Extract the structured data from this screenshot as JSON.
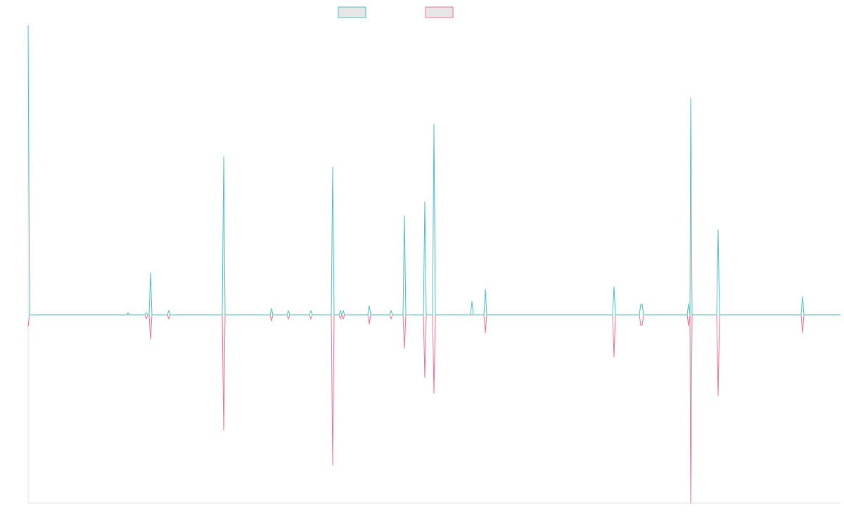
{
  "chart_data": {
    "type": "line",
    "title": "",
    "xlabel": "",
    "ylabel": "",
    "grid": false,
    "legend_position": "top-center",
    "ylim": [
      -268,
      412
    ],
    "xlim": [
      0,
      1155
    ],
    "series": [
      {
        "color": "#4bbfbf",
        "fill": "#e6e6e6",
        "points": [
          [
            0,
            412
          ],
          [
            2,
            0
          ],
          [
            141,
            0
          ],
          [
            142,
            3
          ],
          [
            144,
            0
          ],
          [
            166,
            0
          ],
          [
            168,
            3
          ],
          [
            170,
            0
          ],
          [
            172,
            0
          ],
          [
            174,
            60
          ],
          [
            176,
            0
          ],
          [
            198,
            0
          ],
          [
            200,
            6
          ],
          [
            202,
            0
          ],
          [
            276,
            0
          ],
          [
            278,
            225
          ],
          [
            280,
            0
          ],
          [
            344,
            0
          ],
          [
            346,
            9
          ],
          [
            348,
            0
          ],
          [
            350,
            0
          ],
          [
            368,
            0
          ],
          [
            370,
            6
          ],
          [
            372,
            0
          ],
          [
            400,
            0
          ],
          [
            402,
            6
          ],
          [
            404,
            0
          ],
          [
            431,
            0
          ],
          [
            433,
            210
          ],
          [
            435,
            0
          ],
          [
            442,
            0
          ],
          [
            444,
            6
          ],
          [
            446,
            0
          ],
          [
            448,
            6
          ],
          [
            450,
            0
          ],
          [
            483,
            0
          ],
          [
            485,
            13
          ],
          [
            487,
            0
          ],
          [
            514,
            0
          ],
          [
            516,
            6
          ],
          [
            518,
            0
          ],
          [
            533,
            0
          ],
          [
            535,
            141
          ],
          [
            537,
            0
          ],
          [
            562,
            0
          ],
          [
            564,
            161
          ],
          [
            566,
            0
          ],
          [
            575,
            0
          ],
          [
            577,
            271
          ],
          [
            579,
            0
          ],
          [
            629,
            0
          ],
          [
            631,
            19
          ],
          [
            633,
            0
          ],
          [
            648,
            0
          ],
          [
            650,
            37
          ],
          [
            652,
            0
          ],
          [
            831,
            0
          ],
          [
            833,
            40
          ],
          [
            835,
            0
          ],
          [
            869,
            0
          ],
          [
            871,
            15
          ],
          [
            873,
            15
          ],
          [
            875,
            0
          ],
          [
            937,
            0
          ],
          [
            939,
            16
          ],
          [
            941,
            0
          ],
          [
            942,
            308
          ],
          [
            944,
            0
          ],
          [
            979,
            0
          ],
          [
            981,
            121
          ],
          [
            983,
            0
          ],
          [
            1099,
            0
          ],
          [
            1101,
            26
          ],
          [
            1103,
            0
          ],
          [
            1155,
            0
          ]
        ]
      },
      {
        "color": "#ea6f93",
        "fill": "#e6e6e6",
        "points": [
          [
            0,
            -17
          ],
          [
            2,
            0
          ],
          [
            166,
            0
          ],
          [
            168,
            -6
          ],
          [
            170,
            0
          ],
          [
            172,
            0
          ],
          [
            174,
            -35
          ],
          [
            176,
            0
          ],
          [
            198,
            0
          ],
          [
            200,
            -6
          ],
          [
            202,
            0
          ],
          [
            276,
            0
          ],
          [
            278,
            -164
          ],
          [
            280,
            0
          ],
          [
            344,
            0
          ],
          [
            346,
            -9
          ],
          [
            348,
            0
          ],
          [
            368,
            0
          ],
          [
            370,
            -6
          ],
          [
            372,
            0
          ],
          [
            400,
            0
          ],
          [
            402,
            -6
          ],
          [
            404,
            0
          ],
          [
            431,
            0
          ],
          [
            433,
            -214
          ],
          [
            435,
            0
          ],
          [
            442,
            0
          ],
          [
            444,
            -6
          ],
          [
            446,
            0
          ],
          [
            448,
            -6
          ],
          [
            450,
            0
          ],
          [
            483,
            0
          ],
          [
            485,
            -13
          ],
          [
            487,
            0
          ],
          [
            514,
            0
          ],
          [
            516,
            -6
          ],
          [
            518,
            0
          ],
          [
            533,
            0
          ],
          [
            535,
            -48
          ],
          [
            537,
            0
          ],
          [
            562,
            0
          ],
          [
            564,
            -89
          ],
          [
            566,
            0
          ],
          [
            575,
            0
          ],
          [
            577,
            -112
          ],
          [
            579,
            0
          ],
          [
            648,
            0
          ],
          [
            650,
            -26
          ],
          [
            652,
            0
          ],
          [
            831,
            0
          ],
          [
            833,
            -60
          ],
          [
            835,
            0
          ],
          [
            869,
            0
          ],
          [
            871,
            -15
          ],
          [
            873,
            -15
          ],
          [
            875,
            0
          ],
          [
            937,
            0
          ],
          [
            939,
            -16
          ],
          [
            941,
            0
          ],
          [
            942,
            -268
          ],
          [
            944,
            0
          ],
          [
            979,
            0
          ],
          [
            981,
            -115
          ],
          [
            983,
            0
          ],
          [
            1099,
            0
          ],
          [
            1101,
            -26
          ],
          [
            1103,
            0
          ],
          [
            1155,
            0
          ]
        ]
      }
    ]
  }
}
